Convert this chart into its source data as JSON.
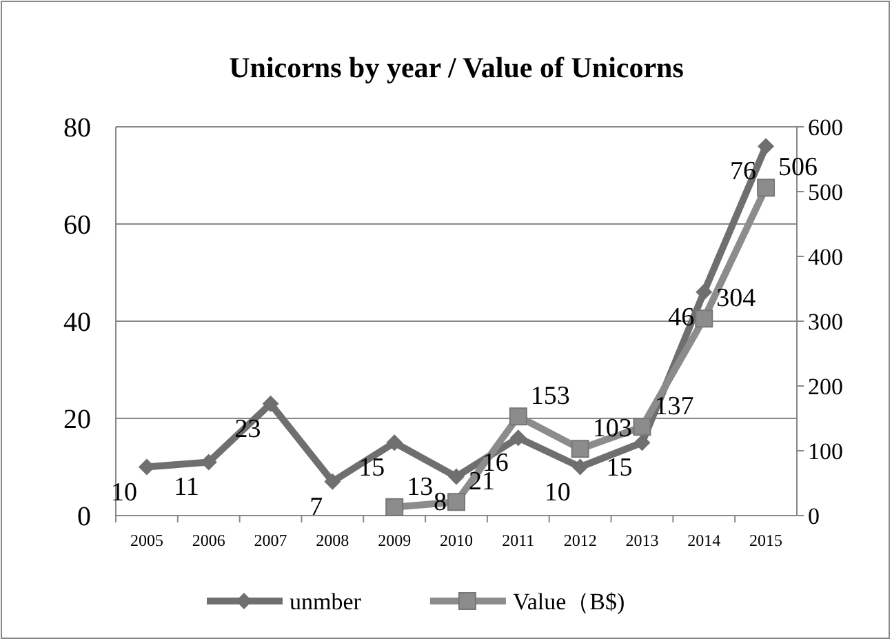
{
  "chart_data": {
    "type": "line",
    "title": "Unicorns by year / Value of Unicorns",
    "categories": [
      "2005",
      "2006",
      "2007",
      "2008",
      "2009",
      "2010",
      "2011",
      "2012",
      "2013",
      "2014",
      "2015"
    ],
    "series": [
      {
        "name": "unmber",
        "color": "#6f6f6f",
        "marker": "diamond",
        "values": [
          10,
          11,
          23,
          7,
          15,
          8,
          16,
          10,
          15,
          46,
          76
        ]
      },
      {
        "name": "Value（B$)",
        "color": "#8c8c8c",
        "marker": "square",
        "axis": "y2",
        "values": [
          null,
          null,
          null,
          null,
          13,
          21,
          153,
          103,
          137,
          304,
          506
        ]
      }
    ],
    "ylim": [
      0,
      80
    ],
    "yticks": [
      0,
      20,
      40,
      60,
      80
    ],
    "y2lim": [
      0,
      600
    ],
    "y2ticks": [
      0,
      100,
      200,
      300,
      400,
      500,
      600
    ],
    "grid": "y",
    "legend": "bottom",
    "data_labels": true,
    "line_style": "solid"
  }
}
